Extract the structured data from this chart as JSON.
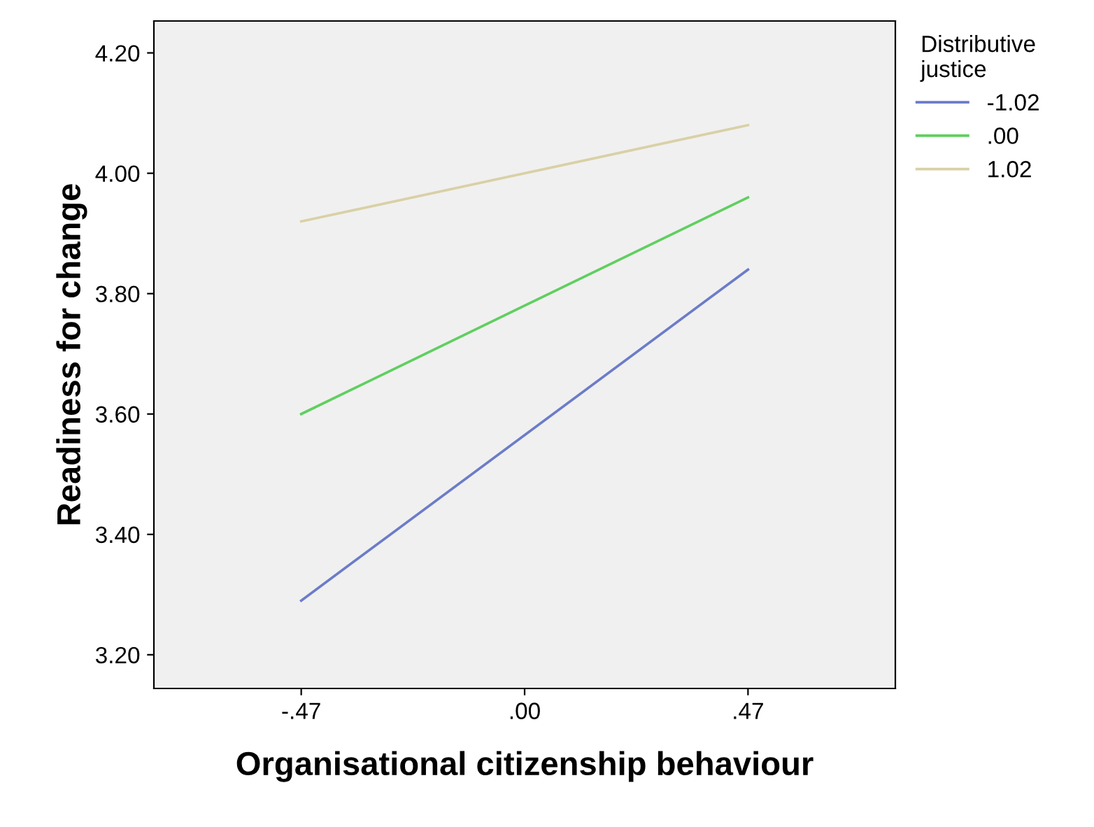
{
  "chart_data": {
    "type": "line",
    "xlabel": "Organisational citizenship behaviour",
    "ylabel": "Readiness for change",
    "legend_title": "Distributive justice",
    "x": [
      -0.47,
      0.47
    ],
    "series": [
      {
        "name": "-1.02",
        "color": "#6b7cc8",
        "values": [
          3.29,
          3.84
        ]
      },
      {
        "name": ".00",
        "color": "#5fcf5f",
        "values": [
          3.6,
          3.96
        ]
      },
      {
        "name": "1.02",
        "color": "#d9d0a6",
        "values": [
          3.92,
          4.08
        ]
      }
    ],
    "xlim": [
      -0.78,
      0.78
    ],
    "xticks": [
      {
        "value": -0.47,
        "label": "-.47"
      },
      {
        "value": 0,
        "label": ".00"
      },
      {
        "value": 0.47,
        "label": ".47"
      }
    ],
    "ylim": [
      3.144,
      4.253
    ],
    "yticks": [
      {
        "value": 3.2,
        "label": "3.20"
      },
      {
        "value": 3.4,
        "label": "3.40"
      },
      {
        "value": 3.6,
        "label": "3.60"
      },
      {
        "value": 3.8,
        "label": "3.80"
      },
      {
        "value": 4.0,
        "label": "4.00"
      },
      {
        "value": 4.2,
        "label": "4.20"
      }
    ],
    "legend": "top right",
    "grid": false,
    "marker": "none",
    "line_style": "solid"
  }
}
